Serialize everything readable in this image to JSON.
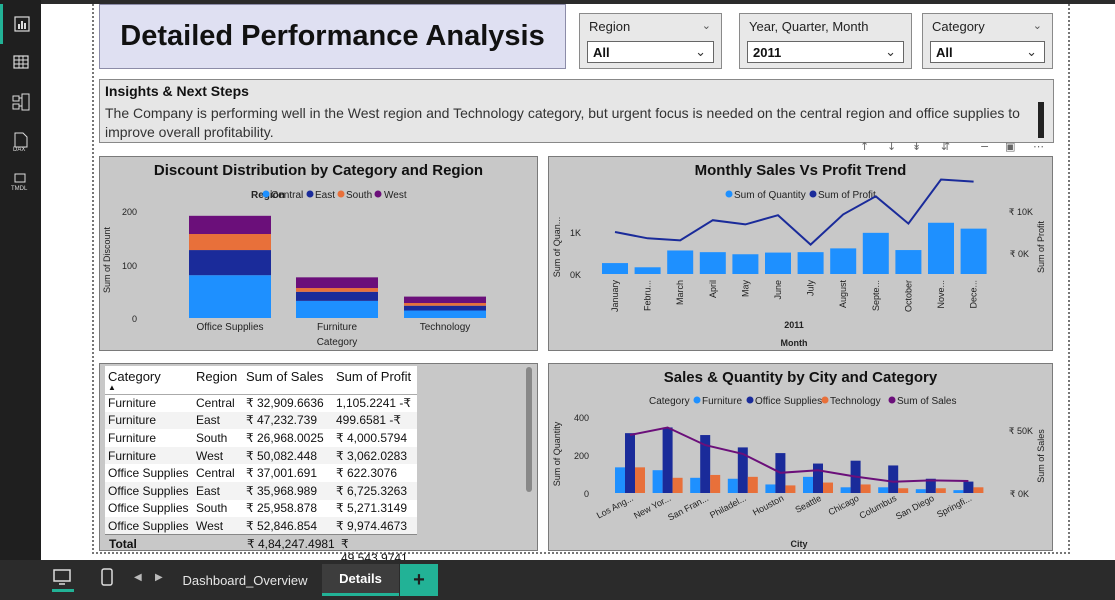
{
  "title": "Detailed Performance Analysis",
  "slicers": [
    {
      "label": "Region",
      "value": "All"
    },
    {
      "label": "Year, Quarter, Month",
      "value": "2011"
    },
    {
      "label": "Category",
      "value": "All"
    }
  ],
  "insights": {
    "heading": "Insights & Next Steps",
    "text": "The Company is performing well in the West region and Technology category, but urgent focus is needed on the central region and office supplies to improve overall profitability."
  },
  "colors": {
    "central": "#1e90ff",
    "east": "#1a2b9a",
    "south": "#e8703a",
    "west": "#6b0f7a",
    "furniture": "#1e90ff",
    "office_supplies": "#1a2b9a",
    "technology": "#e8703a",
    "sum_of_sales": "#6b0f7a",
    "quantity_bar": "#1e90ff",
    "profit_line": "#1a2b9a"
  },
  "discount_chart": {
    "title": "Discount Distribution by Category and Region",
    "legend_title": "Region",
    "legend": [
      "Central",
      "East",
      "South",
      "West"
    ],
    "xlabel": "Category",
    "ylabel": "Sum of Discount",
    "yticks": [
      "200",
      "100",
      "0"
    ],
    "chart_data": {
      "type": "bar",
      "stacked": true,
      "categories": [
        "Office Supplies",
        "Furniture",
        "Technology"
      ],
      "series": [
        {
          "name": "Central",
          "values": [
            80,
            32,
            14
          ]
        },
        {
          "name": "East",
          "values": [
            47,
            17,
            9
          ]
        },
        {
          "name": "South",
          "values": [
            30,
            7,
            5
          ]
        },
        {
          "name": "West",
          "values": [
            34,
            20,
            12
          ]
        }
      ],
      "ylim": [
        0,
        220
      ]
    }
  },
  "monthly_chart": {
    "title": "Monthly Sales Vs Profit Trend",
    "legend": [
      "Sum of Quantity",
      "Sum of Profit"
    ],
    "xlabel": "Month",
    "xsublabel": "2011",
    "ylabel_left": "Sum of Quan...",
    "ylabel_right": "Sum of Profit",
    "yticks_left": [
      "1K",
      "0K"
    ],
    "yticks_right": [
      "₹ 10K",
      "₹ 0K"
    ],
    "months": [
      "January",
      "Febru...",
      "March",
      "April",
      "May",
      "June",
      "July",
      "August",
      "Septe...",
      "October",
      "Nove...",
      "Dece..."
    ],
    "chart_data": {
      "type": "bar+line",
      "quantity": [
        260,
        160,
        560,
        520,
        470,
        510,
        520,
        610,
        980,
        570,
        1220,
        1080
      ],
      "profit": [
        5000,
        3500,
        3000,
        7800,
        6800,
        9000,
        2000,
        9200,
        13500,
        7000,
        17500,
        17000
      ],
      "ylim_left": [
        0,
        1500
      ],
      "ylim_right": [
        -10000,
        20000
      ]
    }
  },
  "table": {
    "columns": [
      "Category",
      "Region",
      "Sum of Sales",
      "Sum of Profit"
    ],
    "rows": [
      [
        "Furniture",
        "Central",
        "₹ 32,909.6636",
        "1,105.2241 -₹"
      ],
      [
        "Furniture",
        "East",
        "₹ 47,232.739",
        "499.6581 -₹"
      ],
      [
        "Furniture",
        "South",
        "₹ 26,968.0025",
        "₹ 4,000.5794"
      ],
      [
        "Furniture",
        "West",
        "₹ 50,082.448",
        "₹ 3,062.0283"
      ],
      [
        "Office Supplies",
        "Central",
        "₹ 37,001.691",
        "₹ 622.3076"
      ],
      [
        "Office Supplies",
        "East",
        "₹ 35,968.989",
        "₹ 6,725.3263"
      ],
      [
        "Office Supplies",
        "South",
        "₹ 25,958.878",
        "₹ 5,271.3149"
      ],
      [
        "Office Supplies",
        "West",
        "₹ 52,846.854",
        "₹ 9,974.4673"
      ]
    ],
    "total": {
      "label": "Total",
      "sales": "₹ 4,84,247.4981",
      "profit": "₹ 49,543.9741"
    }
  },
  "city_chart": {
    "title": "Sales & Quantity by City and Category",
    "legend_title": "Category",
    "legend": [
      "Furniture",
      "Office Supplies",
      "Technology",
      "Sum of Sales"
    ],
    "xlabel": "City",
    "ylabel_left": "Sum of Quantity",
    "ylabel_right": "Sum of Sales",
    "yticks_left": [
      "400",
      "200",
      "0"
    ],
    "yticks_right": [
      "₹ 50K",
      "₹ 0K"
    ],
    "cities": [
      "Los Ang...",
      "New Yor...",
      "San Fran...",
      "Philadel...",
      "Houston",
      "Seattle",
      "Chicago",
      "Columbus",
      "San Diego",
      "Springfi..."
    ],
    "chart_data": {
      "type": "bar+line",
      "furniture": [
        135,
        120,
        80,
        75,
        45,
        85,
        30,
        30,
        20,
        15
      ],
      "office_supplies": [
        315,
        345,
        305,
        240,
        210,
        155,
        170,
        145,
        75,
        60
      ],
      "technology": [
        135,
        80,
        95,
        85,
        40,
        55,
        45,
        25,
        25,
        30
      ],
      "sales": [
        46000,
        52000,
        38000,
        31000,
        16000,
        18000,
        13000,
        9000,
        10000,
        9500
      ],
      "ylim_left": [
        0,
        420
      ],
      "ylim_right": [
        -8000,
        68000
      ]
    }
  },
  "tabs": [
    "Dashboard_Overview",
    "Details"
  ],
  "active_tab": "Details",
  "add_tab_label": "+"
}
